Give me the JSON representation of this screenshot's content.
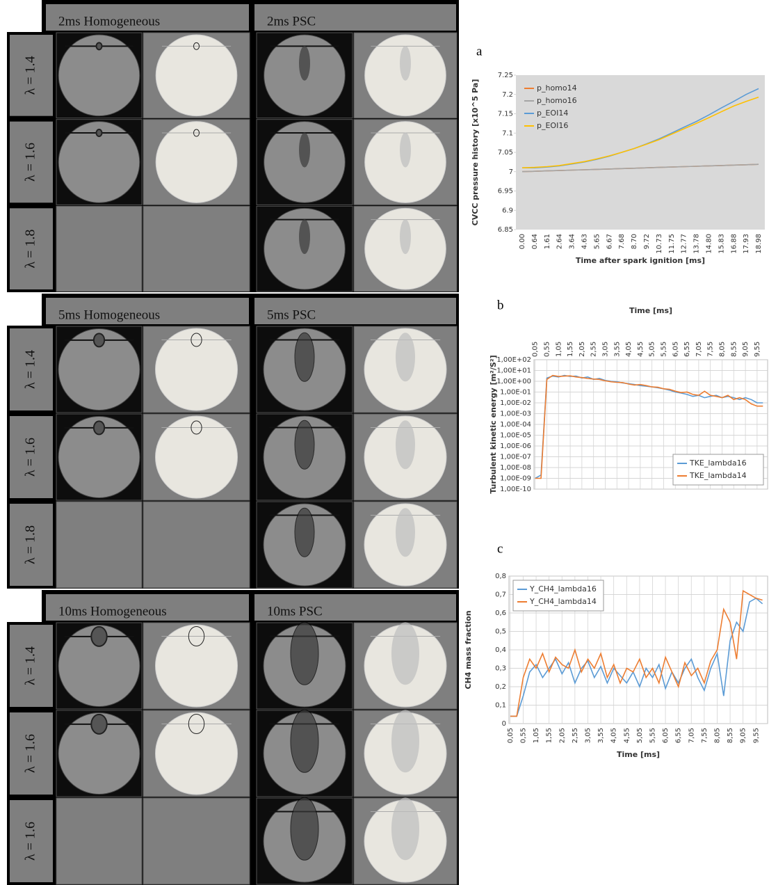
{
  "panels": [
    {
      "headers": [
        "2ms Homogeneous",
        "2ms PSC"
      ],
      "rows": [
        "λ = 1.4",
        "λ = 1.6",
        "λ = 1.8"
      ]
    },
    {
      "headers": [
        "5ms Homogeneous",
        "5ms PSC"
      ],
      "rows": [
        "λ = 1.4",
        "λ = 1.6",
        "λ = 1.8"
      ]
    },
    {
      "headers": [
        "10ms Homogeneous",
        "10ms PSC"
      ],
      "rows": [
        "λ = 1.4",
        "λ = 1.6",
        "λ = 1.6"
      ]
    }
  ],
  "chart_data": [
    {
      "type": "line",
      "label": "a",
      "background": "#d9d9d9",
      "grid": false,
      "legend": "upper left",
      "ylabel": "CVCC pressure history [x10^5 Pa]",
      "xlabel": "Time after spark ignition [ms]",
      "categories": [
        "0.00",
        "0.64",
        "1.61",
        "2.64",
        "3.64",
        "4.63",
        "5.65",
        "6.67",
        "7.68",
        "8.70",
        "9.72",
        "10.73",
        "11.75",
        "12.77",
        "13.78",
        "14.80",
        "15.83",
        "16.88",
        "17.93",
        "18.98"
      ],
      "ylim": [
        6.85,
        7.25
      ],
      "yticks": [
        6.85,
        6.9,
        6.95,
        7,
        7.05,
        7.1,
        7.15,
        7.2,
        7.25
      ],
      "series": [
        {
          "name": "p_homo14",
          "color": "#ed7d31",
          "values": [
            7.0,
            7.001,
            7.002,
            7.003,
            7.004,
            7.005,
            7.006,
            7.007,
            7.008,
            7.009,
            7.01,
            7.011,
            7.012,
            7.013,
            7.014,
            7.015,
            7.016,
            7.017,
            7.018,
            7.019
          ]
        },
        {
          "name": "p_homo16",
          "color": "#a5a5a5",
          "values": [
            7.0,
            7.001,
            7.002,
            7.003,
            7.004,
            7.005,
            7.006,
            7.007,
            7.008,
            7.009,
            7.01,
            7.011,
            7.012,
            7.013,
            7.014,
            7.015,
            7.016,
            7.017,
            7.018,
            7.019
          ]
        },
        {
          "name": "p_EOI14",
          "color": "#5b9bd5",
          "values": [
            7.01,
            7.01,
            7.012,
            7.015,
            7.02,
            7.025,
            7.032,
            7.04,
            7.05,
            7.06,
            7.072,
            7.085,
            7.1,
            7.115,
            7.13,
            7.147,
            7.165,
            7.182,
            7.2,
            7.215
          ]
        },
        {
          "name": "p_EOI16",
          "color": "#ffc000",
          "values": [
            7.01,
            7.011,
            7.013,
            7.016,
            7.021,
            7.026,
            7.033,
            7.041,
            7.05,
            7.06,
            7.071,
            7.083,
            7.097,
            7.111,
            7.125,
            7.14,
            7.155,
            7.17,
            7.182,
            7.193
          ]
        }
      ]
    },
    {
      "type": "line",
      "label": "b",
      "background": "#ffffff",
      "grid": true,
      "log_y": true,
      "legend": "lower right",
      "xaxis_top": true,
      "ylabel": "Turbulent kinetic energy [m²/S²]",
      "xlabel": "Time [ms]",
      "x": [
        0.05,
        0.3,
        0.55,
        0.8,
        1.05,
        1.3,
        1.55,
        1.8,
        2.05,
        2.3,
        2.55,
        2.8,
        3.05,
        3.3,
        3.55,
        3.8,
        4.05,
        4.3,
        4.55,
        4.8,
        5.05,
        5.3,
        5.55,
        5.8,
        6.05,
        6.3,
        6.55,
        6.8,
        7.05,
        7.3,
        7.55,
        7.8,
        8.05,
        8.3,
        8.55,
        8.8,
        9.05,
        9.3,
        9.55,
        9.8
      ],
      "xlim": [
        0,
        10
      ],
      "xticks": [
        {
          "value": 0.05,
          "label": "0,05"
        },
        {
          "value": 0.55,
          "label": "0,55"
        },
        {
          "value": 1.05,
          "label": "1,05"
        },
        {
          "value": 1.55,
          "label": "1,55"
        },
        {
          "value": 2.05,
          "label": "2,05"
        },
        {
          "value": 2.55,
          "label": "2,55"
        },
        {
          "value": 3.05,
          "label": "3,05"
        },
        {
          "value": 3.55,
          "label": "3,55"
        },
        {
          "value": 4.05,
          "label": "4,05"
        },
        {
          "value": 4.55,
          "label": "4,55"
        },
        {
          "value": 5.05,
          "label": "5,05"
        },
        {
          "value": 5.55,
          "label": "5,55"
        },
        {
          "value": 6.05,
          "label": "6,05"
        },
        {
          "value": 6.55,
          "label": "6,55"
        },
        {
          "value": 7.05,
          "label": "7,05"
        },
        {
          "value": 7.55,
          "label": "7,55"
        },
        {
          "value": 8.05,
          "label": "8,05"
        },
        {
          "value": 8.55,
          "label": "8,55"
        },
        {
          "value": 9.05,
          "label": "9,05"
        },
        {
          "value": 9.55,
          "label": "9,55"
        }
      ],
      "ylim": [
        1e-10,
        100
      ],
      "yticks": [
        {
          "value": 1e-10,
          "label": "1,00E-10"
        },
        {
          "value": 1e-09,
          "label": "1,00E-09"
        },
        {
          "value": 1e-08,
          "label": "1,00E-08"
        },
        {
          "value": 1e-07,
          "label": "1,00E-07"
        },
        {
          "value": 1e-06,
          "label": "1,00E-06"
        },
        {
          "value": 1e-05,
          "label": "1,00E-05"
        },
        {
          "value": 0.0001,
          "label": "1,00E-04"
        },
        {
          "value": 0.001,
          "label": "1,00E-03"
        },
        {
          "value": 0.01,
          "label": "1,00E-02"
        },
        {
          "value": 0.1,
          "label": "1,00E-01"
        },
        {
          "value": 1,
          "label": "1,00E+00"
        },
        {
          "value": 10,
          "label": "1,00E+01"
        },
        {
          "value": 100,
          "label": "1,00E+02"
        }
      ],
      "series": [
        {
          "name": "TKE_lambda16",
          "color": "#5b9bd5",
          "values": [
            1e-09,
            2e-09,
            2,
            3,
            2.5,
            3.5,
            2.8,
            3,
            2,
            2.5,
            1.5,
            1.8,
            1.2,
            1.0,
            0.9,
            0.7,
            0.6,
            0.5,
            0.4,
            0.35,
            0.3,
            0.25,
            0.2,
            0.15,
            0.1,
            0.08,
            0.06,
            0.04,
            0.05,
            0.03,
            0.04,
            0.05,
            0.03,
            0.04,
            0.03,
            0.02,
            0.03,
            0.02,
            0.01,
            0.01
          ]
        },
        {
          "name": "TKE_lambda14",
          "color": "#ed7d31",
          "values": [
            1e-09,
            1e-09,
            1.5,
            3.5,
            2.8,
            3,
            3.2,
            2.5,
            2.2,
            1.8,
            1.6,
            1.5,
            1.1,
            0.9,
            0.8,
            0.75,
            0.55,
            0.45,
            0.5,
            0.4,
            0.3,
            0.28,
            0.2,
            0.18,
            0.12,
            0.09,
            0.1,
            0.06,
            0.05,
            0.12,
            0.05,
            0.04,
            0.03,
            0.05,
            0.02,
            0.03,
            0.02,
            0.008,
            0.005,
            0.005
          ]
        }
      ]
    },
    {
      "type": "line",
      "label": "c",
      "background": "#ffffff",
      "grid": true,
      "legend": "upper left",
      "ylabel": "CH4 mass fraction",
      "xlabel": "Time [ms]",
      "x": [
        0.05,
        0.3,
        0.55,
        0.8,
        1.05,
        1.3,
        1.55,
        1.8,
        2.05,
        2.3,
        2.55,
        2.8,
        3.05,
        3.3,
        3.55,
        3.8,
        4.05,
        4.3,
        4.55,
        4.8,
        5.05,
        5.3,
        5.55,
        5.8,
        6.05,
        6.3,
        6.55,
        6.8,
        7.05,
        7.3,
        7.55,
        7.8,
        8.05,
        8.3,
        8.55,
        8.8,
        9.05,
        9.3,
        9.55,
        9.8
      ],
      "xlim": [
        0,
        10
      ],
      "xticks": [
        {
          "value": 0.05,
          "label": "0,05"
        },
        {
          "value": 0.55,
          "label": "0,55"
        },
        {
          "value": 1.05,
          "label": "1,05"
        },
        {
          "value": 1.55,
          "label": "1,55"
        },
        {
          "value": 2.05,
          "label": "2,05"
        },
        {
          "value": 2.55,
          "label": "2,55"
        },
        {
          "value": 3.05,
          "label": "3,05"
        },
        {
          "value": 3.55,
          "label": "3,55"
        },
        {
          "value": 4.05,
          "label": "4,05"
        },
        {
          "value": 4.55,
          "label": "4,55"
        },
        {
          "value": 5.05,
          "label": "5,05"
        },
        {
          "value": 5.55,
          "label": "5,55"
        },
        {
          "value": 6.05,
          "label": "6,05"
        },
        {
          "value": 6.55,
          "label": "6,55"
        },
        {
          "value": 7.05,
          "label": "7,05"
        },
        {
          "value": 7.55,
          "label": "7,55"
        },
        {
          "value": 8.05,
          "label": "8,05"
        },
        {
          "value": 8.55,
          "label": "8,55"
        },
        {
          "value": 9.05,
          "label": "9,05"
        },
        {
          "value": 9.55,
          "label": "9,55"
        }
      ],
      "ylim": [
        0,
        0.8
      ],
      "yticks": [
        0,
        {
          "value": 0.1,
          "label": "0,1"
        },
        {
          "value": 0.2,
          "label": "0,2"
        },
        {
          "value": 0.3,
          "label": "0,3"
        },
        {
          "value": 0.4,
          "label": "0,4"
        },
        {
          "value": 0.5,
          "label": "0,5"
        },
        {
          "value": 0.6,
          "label": "0,6"
        },
        {
          "value": 0.7,
          "label": "0,7"
        },
        {
          "value": 0.8,
          "label": "0,8"
        }
      ],
      "series": [
        {
          "name": "Y_CH4_lambda16",
          "color": "#5b9bd5",
          "values": [
            0.04,
            0.04,
            0.15,
            0.28,
            0.32,
            0.25,
            0.3,
            0.35,
            0.27,
            0.33,
            0.22,
            0.3,
            0.34,
            0.25,
            0.31,
            0.22,
            0.3,
            0.26,
            0.22,
            0.28,
            0.2,
            0.3,
            0.25,
            0.32,
            0.19,
            0.28,
            0.22,
            0.3,
            0.35,
            0.25,
            0.18,
            0.3,
            0.38,
            0.15,
            0.45,
            0.55,
            0.5,
            0.66,
            0.68,
            0.65
          ]
        },
        {
          "name": "Y_CH4_lambda14",
          "color": "#ed7d31",
          "values": [
            0.04,
            0.04,
            0.25,
            0.35,
            0.3,
            0.38,
            0.28,
            0.36,
            0.32,
            0.3,
            0.4,
            0.28,
            0.35,
            0.3,
            0.38,
            0.25,
            0.32,
            0.22,
            0.3,
            0.28,
            0.35,
            0.25,
            0.3,
            0.22,
            0.36,
            0.28,
            0.2,
            0.33,
            0.26,
            0.3,
            0.22,
            0.34,
            0.4,
            0.62,
            0.55,
            0.35,
            0.72,
            0.7,
            0.68,
            0.67
          ]
        }
      ]
    }
  ]
}
